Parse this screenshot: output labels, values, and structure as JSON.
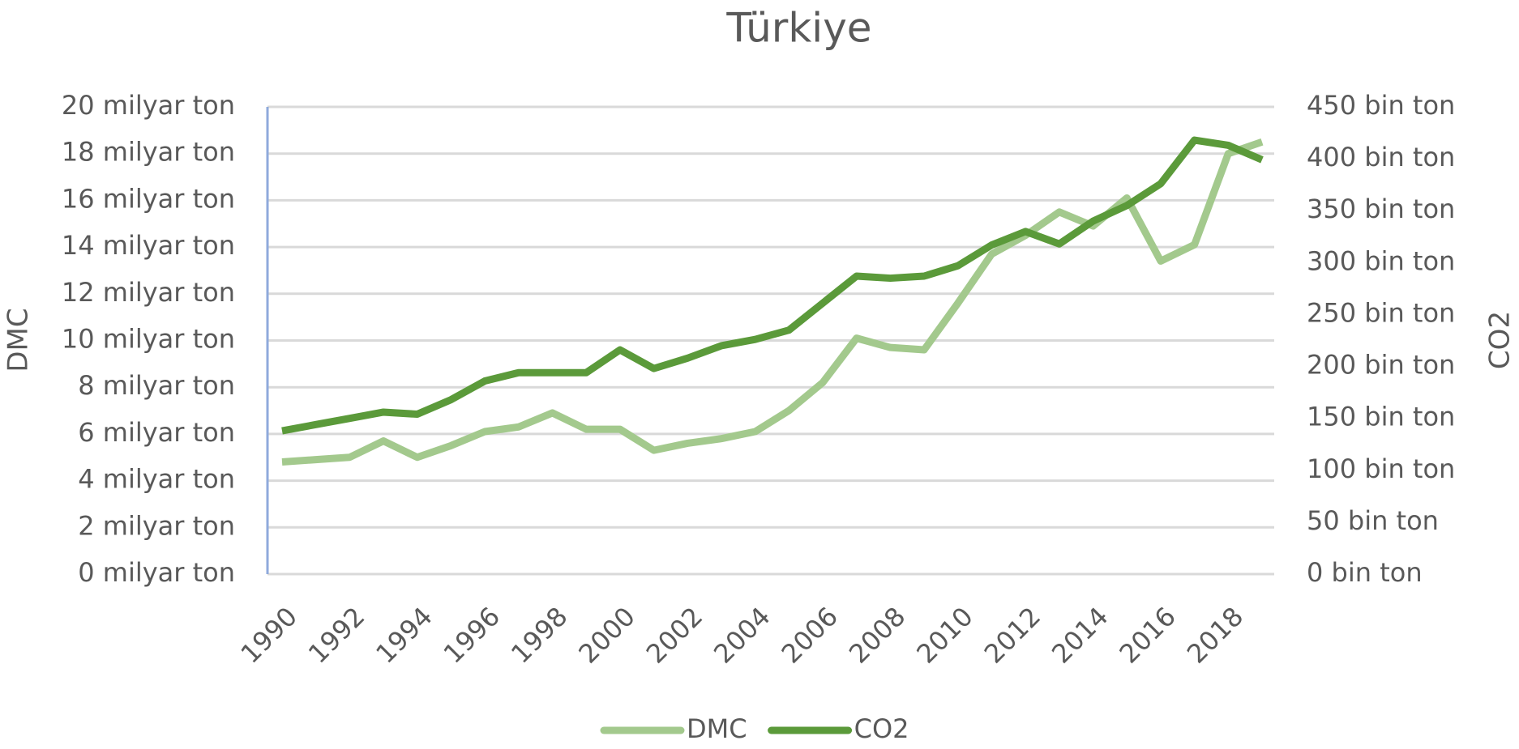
{
  "chart_data": {
    "type": "line",
    "title": "Türkiye",
    "y_label": "DMC",
    "y2_label": "CO2",
    "x": [
      1990,
      1991,
      1992,
      1993,
      1994,
      1995,
      1996,
      1997,
      1998,
      1999,
      2000,
      2001,
      2002,
      2003,
      2004,
      2005,
      2006,
      2007,
      2008,
      2009,
      2010,
      2011,
      2012,
      2013,
      2014,
      2015,
      2016,
      2017,
      2018,
      2019
    ],
    "xlim": [
      1990,
      2019
    ],
    "xticks": [
      1990,
      1992,
      1994,
      1996,
      1998,
      2000,
      2002,
      2004,
      2006,
      2008,
      2010,
      2012,
      2014,
      2016,
      2018
    ],
    "ylim": [
      0,
      20
    ],
    "yticks": [
      {
        "value": 0,
        "label": "0 milyar ton"
      },
      {
        "value": 2,
        "label": "2 milyar ton"
      },
      {
        "value": 4,
        "label": "4 milyar ton"
      },
      {
        "value": 6,
        "label": "6 milyar ton"
      },
      {
        "value": 8,
        "label": "8 milyar ton"
      },
      {
        "value": 10,
        "label": "10 milyar ton"
      },
      {
        "value": 12,
        "label": "12 milyar ton"
      },
      {
        "value": 14,
        "label": "14 milyar ton"
      },
      {
        "value": 16,
        "label": "16 milyar ton"
      },
      {
        "value": 18,
        "label": "18 milyar ton"
      },
      {
        "value": 20,
        "label": "20 milyar ton"
      }
    ],
    "y2lim": [
      0,
      450
    ],
    "y2ticks": [
      {
        "value": 0,
        "label": "0 bin ton"
      },
      {
        "value": 50,
        "label": "50 bin ton"
      },
      {
        "value": 100,
        "label": "100 bin ton"
      },
      {
        "value": 150,
        "label": "150 bin ton"
      },
      {
        "value": 200,
        "label": "200 bin ton"
      },
      {
        "value": 250,
        "label": "250 bin ton"
      },
      {
        "value": 300,
        "label": "300 bin ton"
      },
      {
        "value": 350,
        "label": "350 bin ton"
      },
      {
        "value": 400,
        "label": "400 bin ton"
      },
      {
        "value": 450,
        "label": "450 bin ton"
      }
    ],
    "grid": true,
    "legend": "bottom",
    "series": [
      {
        "name": "DMC",
        "color": "#a3c98d",
        "values": [
          4.8,
          4.9,
          5.0,
          5.7,
          5.0,
          5.5,
          6.1,
          6.3,
          6.9,
          6.2,
          6.2,
          5.3,
          5.6,
          5.8,
          6.1,
          7.0,
          8.2,
          10.1,
          9.7,
          9.6,
          11.6,
          13.7,
          14.5,
          15.5,
          14.9,
          16.1,
          13.4,
          14.1,
          18.0,
          18.5
        ]
      },
      {
        "name": "CO2",
        "color": "#5b9a3a",
        "axis": "y2",
        "values": [
          138,
          144,
          150,
          156,
          154,
          168,
          186,
          194,
          194,
          194,
          216,
          198,
          208,
          220,
          226,
          235,
          261,
          287,
          285,
          287,
          297,
          317,
          330,
          318,
          340,
          355,
          376,
          418,
          413,
          399
        ]
      }
    ]
  }
}
